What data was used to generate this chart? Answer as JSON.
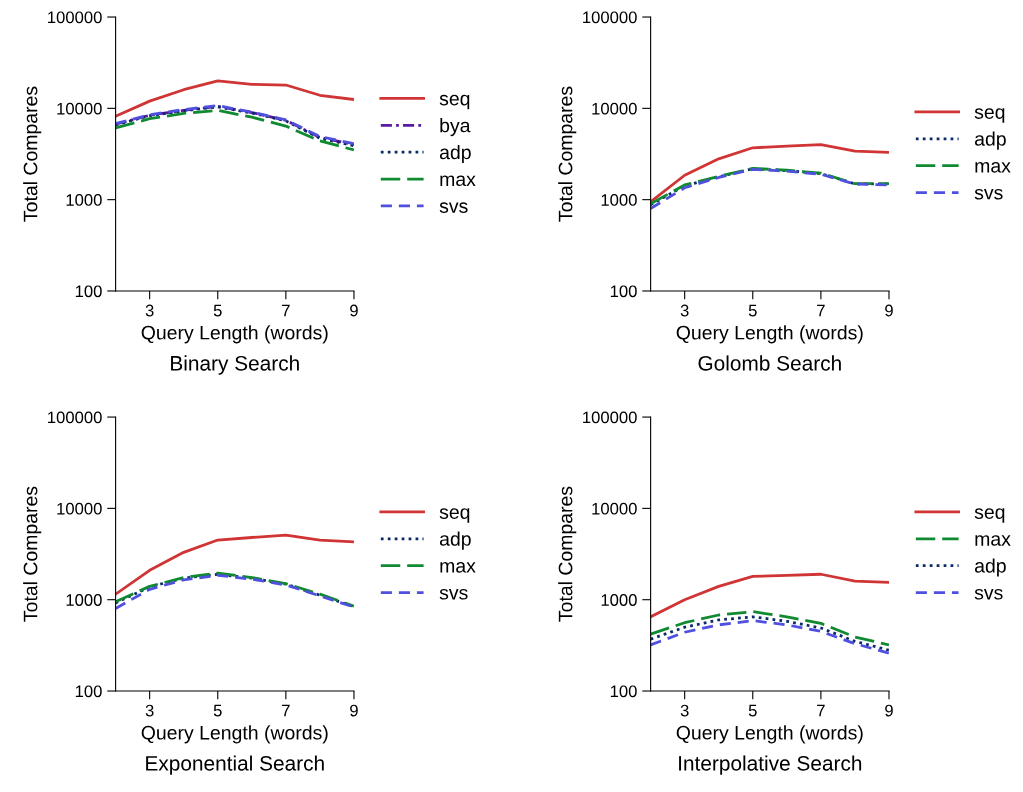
{
  "chart_data": [
    {
      "type": "line",
      "title": "Binary Search",
      "xlabel": "Query Length (words)",
      "ylabel": "Total Compares",
      "log": "y",
      "xlim": [
        2,
        9
      ],
      "xticks": [
        3,
        5,
        7,
        9
      ],
      "ylim": [
        100,
        100000
      ],
      "yticks": [
        100,
        1000,
        10000,
        100000
      ],
      "legend": "right",
      "grid": false,
      "x": [
        2,
        3,
        4,
        5,
        6,
        7,
        8,
        9
      ],
      "series": [
        {
          "name": "seq",
          "color": "#d03434",
          "line_style": "solid",
          "values": [
            8200,
            12000,
            16000,
            20000,
            18300,
            18000,
            13900,
            12500
          ]
        },
        {
          "name": "bya",
          "color": "#5b1aa0",
          "line_style": "dashdot",
          "values": [
            6700,
            8400,
            9500,
            10500,
            9000,
            7400,
            4800,
            4000
          ]
        },
        {
          "name": "adp",
          "color": "#0a2a6a",
          "line_style": "dotted",
          "values": [
            6600,
            8300,
            9400,
            10400,
            8900,
            7300,
            4700,
            3900
          ]
        },
        {
          "name": "max",
          "color": "#108a30",
          "line_style": "longdash",
          "values": [
            6100,
            7700,
            8800,
            9500,
            8000,
            6400,
            4400,
            3500
          ]
        },
        {
          "name": "svs",
          "color": "#5050e0",
          "line_style": "dashed",
          "values": [
            6800,
            8500,
            9700,
            10700,
            9100,
            7500,
            4900,
            4100
          ]
        }
      ]
    },
    {
      "type": "line",
      "title": "Golomb Search",
      "xlabel": "Query Length (words)",
      "ylabel": "Total Compares",
      "log": "y",
      "xlim": [
        2,
        9
      ],
      "xticks": [
        3,
        5,
        7,
        9
      ],
      "ylim": [
        100,
        100000
      ],
      "yticks": [
        100,
        1000,
        10000,
        100000
      ],
      "legend": "right",
      "grid": false,
      "x": [
        2,
        3,
        4,
        5,
        6,
        7,
        8,
        9
      ],
      "series": [
        {
          "name": "seq",
          "color": "#d03434",
          "line_style": "solid",
          "values": [
            950,
            1850,
            2800,
            3700,
            3850,
            4000,
            3400,
            3300
          ]
        },
        {
          "name": "adp",
          "color": "#0a2a6a",
          "line_style": "dotted",
          "values": [
            880,
            1420,
            1780,
            2180,
            2080,
            1930,
            1490,
            1490
          ]
        },
        {
          "name": "max",
          "color": "#108a30",
          "line_style": "longdash",
          "values": [
            900,
            1450,
            1800,
            2200,
            2100,
            1950,
            1500,
            1500
          ]
        },
        {
          "name": "svs",
          "color": "#5050e0",
          "line_style": "dashed",
          "values": [
            800,
            1350,
            1750,
            2150,
            2050,
            1900,
            1480,
            1450
          ]
        }
      ]
    },
    {
      "type": "line",
      "title": "Exponential Search",
      "xlabel": "Query Length (words)",
      "ylabel": "Total Compares",
      "log": "y",
      "xlim": [
        2,
        9
      ],
      "xticks": [
        3,
        5,
        7,
        9
      ],
      "ylim": [
        100,
        100000
      ],
      "yticks": [
        100,
        1000,
        10000,
        100000
      ],
      "legend": "right",
      "grid": false,
      "x": [
        2,
        3,
        4,
        5,
        6,
        7,
        8,
        9
      ],
      "series": [
        {
          "name": "seq",
          "color": "#d03434",
          "line_style": "solid",
          "values": [
            1150,
            2100,
            3300,
            4500,
            4800,
            5100,
            4500,
            4300
          ]
        },
        {
          "name": "adp",
          "color": "#0a2a6a",
          "line_style": "dotted",
          "values": [
            920,
            1380,
            1720,
            1900,
            1720,
            1480,
            1120,
            840
          ]
        },
        {
          "name": "max",
          "color": "#108a30",
          "line_style": "longdash",
          "values": [
            950,
            1400,
            1750,
            1950,
            1750,
            1500,
            1150,
            850
          ]
        },
        {
          "name": "svs",
          "color": "#5050e0",
          "line_style": "dashed",
          "values": [
            800,
            1300,
            1650,
            1850,
            1680,
            1450,
            1100,
            830
          ]
        }
      ]
    },
    {
      "type": "line",
      "title": "Interpolative Search",
      "xlabel": "Query Length (words)",
      "ylabel": "Total Compares",
      "log": "y",
      "xlim": [
        2,
        9
      ],
      "xticks": [
        3,
        5,
        7,
        9
      ],
      "ylim": [
        100,
        100000
      ],
      "yticks": [
        100,
        1000,
        10000,
        100000
      ],
      "legend": "right",
      "grid": false,
      "x": [
        2,
        3,
        4,
        5,
        6,
        7,
        8,
        9
      ],
      "series": [
        {
          "name": "seq",
          "color": "#d03434",
          "line_style": "solid",
          "values": [
            650,
            1000,
            1400,
            1800,
            1850,
            1900,
            1600,
            1550
          ]
        },
        {
          "name": "max",
          "color": "#108a30",
          "line_style": "longdash",
          "values": [
            420,
            560,
            680,
            740,
            650,
            550,
            390,
            320
          ]
        },
        {
          "name": "adp",
          "color": "#0a2a6a",
          "line_style": "dotted",
          "values": [
            370,
            500,
            600,
            650,
            580,
            490,
            350,
            280
          ]
        },
        {
          "name": "svs",
          "color": "#5050e0",
          "line_style": "dashed",
          "values": [
            320,
            440,
            530,
            590,
            530,
            450,
            330,
            260
          ]
        }
      ]
    }
  ]
}
